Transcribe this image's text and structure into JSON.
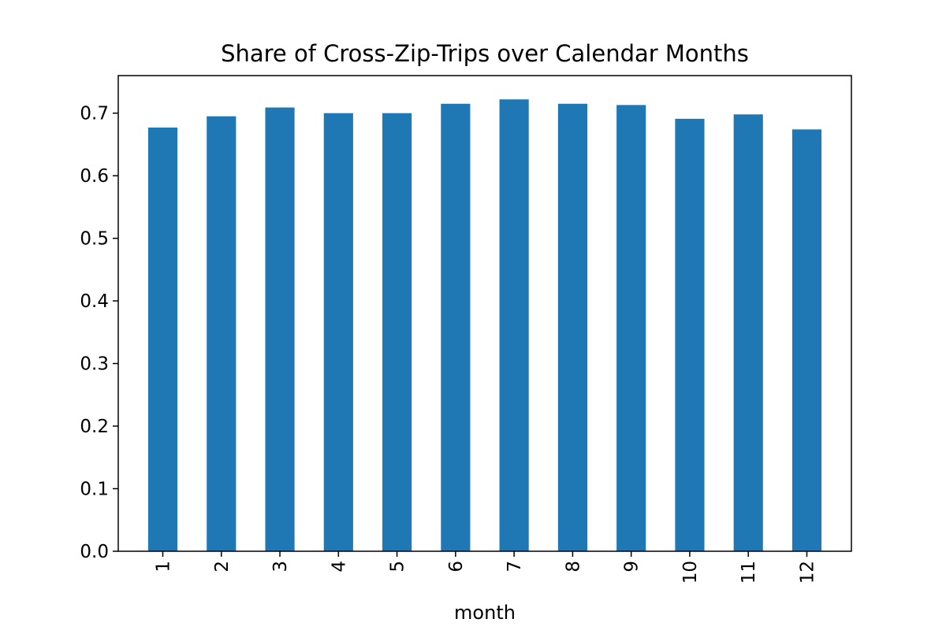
{
  "chart_data": {
    "type": "bar",
    "title": "Share of Cross-Zip-Trips over Calendar Months",
    "xlabel": "month",
    "ylabel": "",
    "categories": [
      "1",
      "2",
      "3",
      "4",
      "5",
      "6",
      "7",
      "8",
      "9",
      "10",
      "11",
      "12"
    ],
    "values": [
      0.677,
      0.695,
      0.709,
      0.7,
      0.7,
      0.715,
      0.722,
      0.715,
      0.713,
      0.691,
      0.698,
      0.674
    ],
    "ylim": [
      0,
      0.76
    ],
    "yticks": [
      "0.0",
      "0.1",
      "0.2",
      "0.3",
      "0.4",
      "0.5",
      "0.6",
      "0.7"
    ],
    "grid": false,
    "legend": "none",
    "bar_color": "#1f77b4",
    "xtick_rotation": "vertical"
  }
}
